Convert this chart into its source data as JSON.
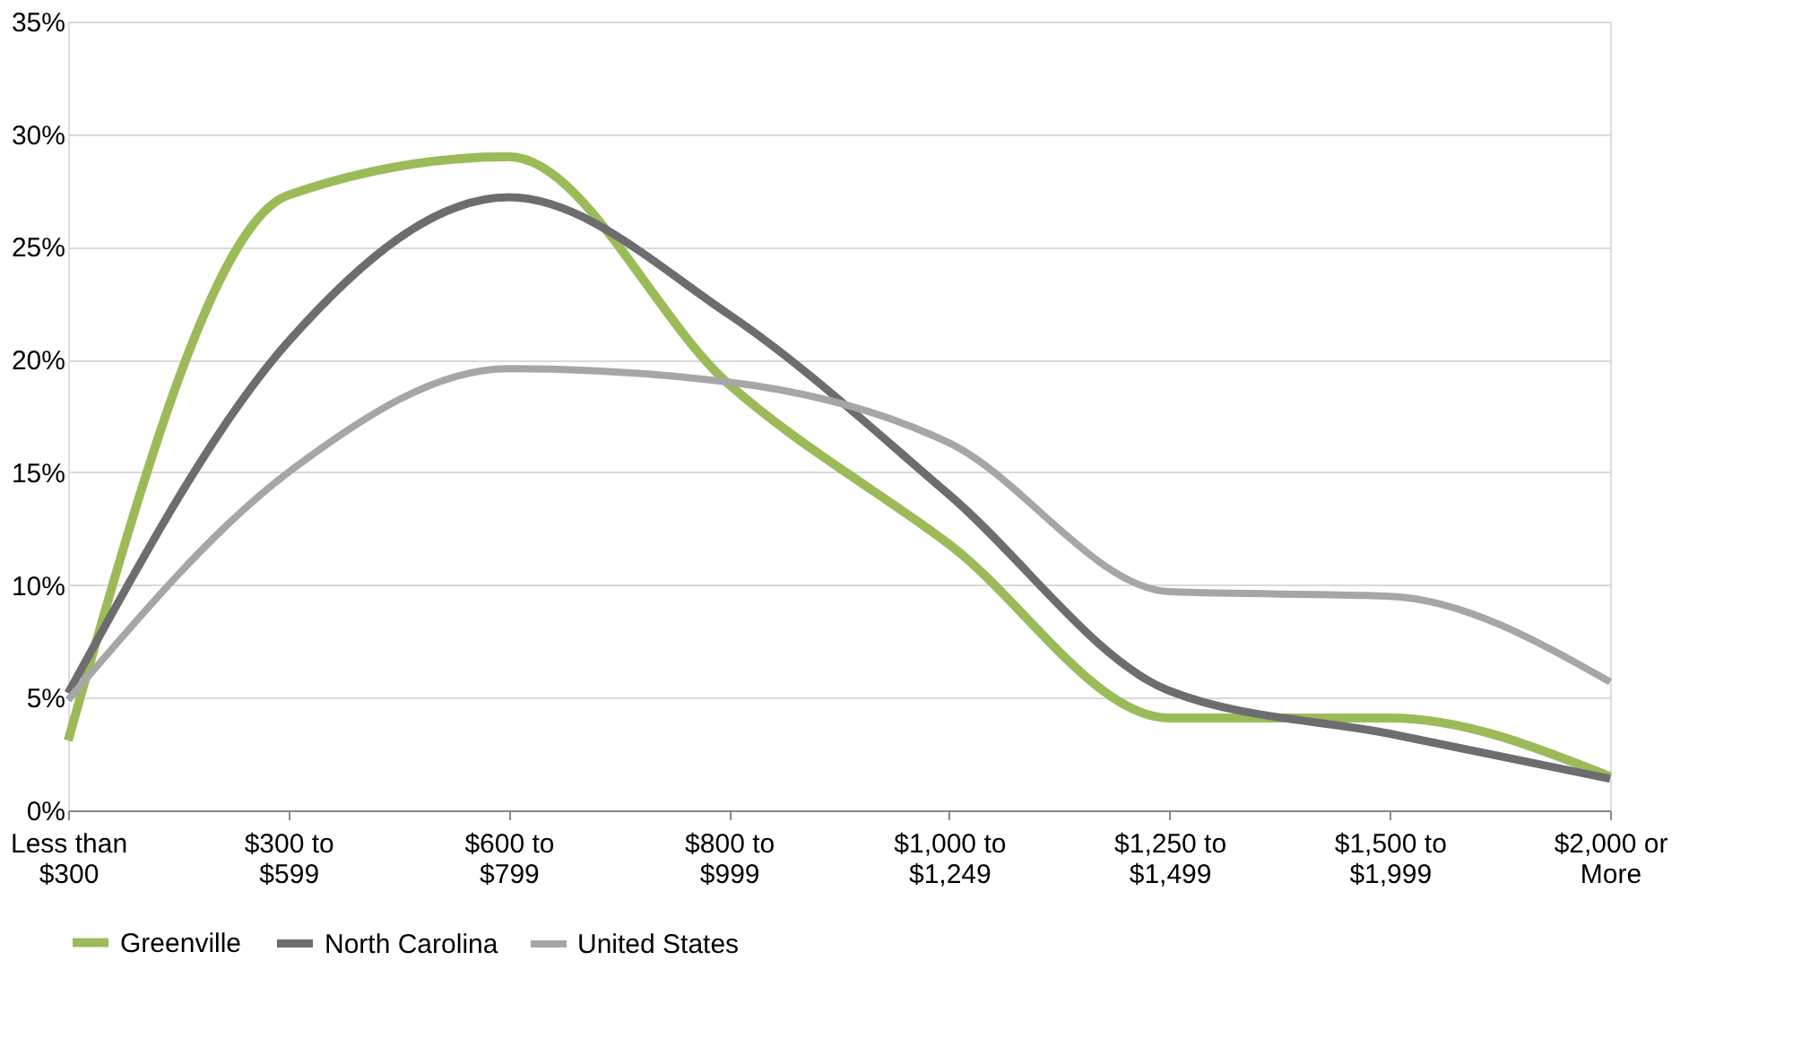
{
  "chart_data": {
    "type": "line",
    "categories": [
      "Less than\n$300",
      "$300 to\n$599",
      "$600 to\n$799",
      "$800 to\n$999",
      "$1,000 to\n$1,249",
      "$1,250 to\n$1,499",
      "$1,500 to\n$1,999",
      "$2,000 or\nMore"
    ],
    "series": [
      {
        "name": "Greenville",
        "color": "#9bbb59",
        "values": [
          3.1,
          27.3,
          29.0,
          18.9,
          11.8,
          4.1,
          4.1,
          1.5
        ]
      },
      {
        "name": "North Carolina",
        "color": "#6d6d6f",
        "values": [
          5.2,
          20.8,
          27.2,
          22.0,
          14.0,
          5.3,
          3.4,
          1.4
        ]
      },
      {
        "name": "United States",
        "color": "#a6a6a6",
        "values": [
          4.9,
          15.0,
          19.6,
          19.0,
          16.3,
          9.7,
          9.5,
          5.7
        ]
      }
    ],
    "ylim": [
      0,
      35
    ],
    "yticks": [
      {
        "value": 0,
        "label": "0%"
      },
      {
        "value": 5,
        "label": "5%"
      },
      {
        "value": 10,
        "label": "10%"
      },
      {
        "value": 15,
        "label": "15%"
      },
      {
        "value": 20,
        "label": "20%"
      },
      {
        "value": 25,
        "label": "25%"
      },
      {
        "value": 30,
        "label": "30%"
      },
      {
        "value": 35,
        "label": "35%"
      }
    ],
    "grid": "y",
    "legend": "bottom",
    "marker": "none",
    "line_style": "solid"
  }
}
